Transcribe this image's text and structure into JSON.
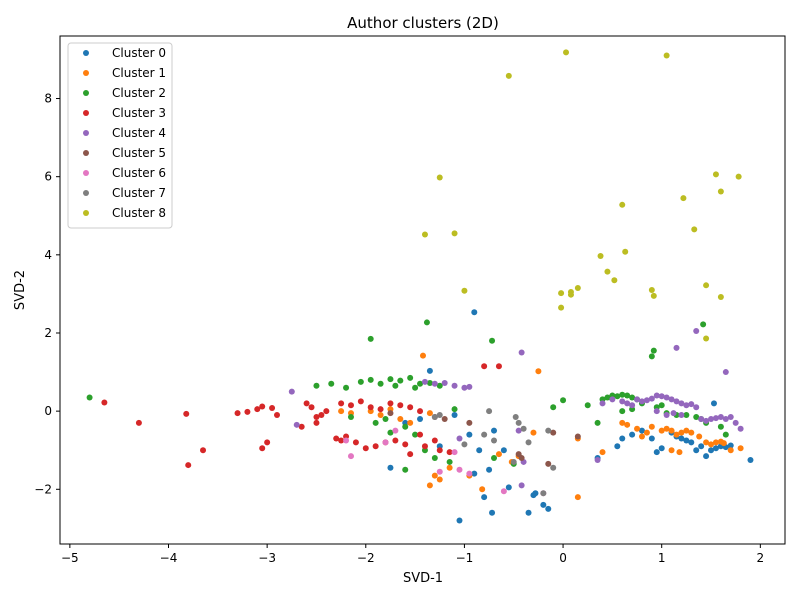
{
  "chart_data": {
    "type": "scatter",
    "title": "Author clusters (2D)",
    "xlabel": "SVD-1",
    "ylabel": "SVD-2",
    "xlim": [
      -5.1,
      2.25
    ],
    "ylim": [
      -3.4,
      9.6
    ],
    "xticks": [
      -5,
      -4,
      -3,
      -2,
      -1,
      0,
      1,
      2
    ],
    "yticks": [
      -2,
      0,
      2,
      4,
      6,
      8
    ],
    "grid": false,
    "legend_position": "top-left",
    "series": [
      {
        "name": "Cluster 0",
        "color": "#1f77b4",
        "points": [
          [
            -0.9,
            2.53
          ],
          [
            -1.35,
            1.03
          ],
          [
            -1.75,
            -1.45
          ],
          [
            -1.25,
            -0.9
          ],
          [
            -1.05,
            -2.8
          ],
          [
            -0.9,
            -1.6
          ],
          [
            -0.8,
            -2.2
          ],
          [
            -0.72,
            -2.6
          ],
          [
            -0.55,
            -1.95
          ],
          [
            -0.3,
            -2.15
          ],
          [
            -0.28,
            -2.1
          ],
          [
            -0.2,
            -2.4
          ],
          [
            -0.15,
            -2.5
          ],
          [
            -0.35,
            -2.6
          ],
          [
            -0.7,
            -0.5
          ],
          [
            -0.75,
            -1.5
          ],
          [
            -0.6,
            -1.0
          ],
          [
            -0.85,
            -1.0
          ],
          [
            -0.95,
            -0.6
          ],
          [
            -1.1,
            -0.1
          ],
          [
            0.35,
            -1.2
          ],
          [
            0.55,
            -0.9
          ],
          [
            0.6,
            -0.7
          ],
          [
            0.7,
            -0.6
          ],
          [
            0.8,
            -0.5
          ],
          [
            0.9,
            -0.7
          ],
          [
            0.95,
            -1.05
          ],
          [
            1.0,
            -0.95
          ],
          [
            1.1,
            -0.55
          ],
          [
            1.15,
            -0.65
          ],
          [
            1.2,
            -0.7
          ],
          [
            1.25,
            -0.75
          ],
          [
            1.3,
            -0.8
          ],
          [
            1.35,
            -1.0
          ],
          [
            1.4,
            -0.9
          ],
          [
            1.45,
            -1.15
          ],
          [
            1.5,
            -1.0
          ],
          [
            1.55,
            -0.95
          ],
          [
            1.6,
            -0.9
          ],
          [
            1.65,
            -0.92
          ],
          [
            1.7,
            -0.88
          ],
          [
            1.53,
            0.2
          ],
          [
            1.9,
            -1.25
          ],
          [
            -1.6,
            -0.3
          ],
          [
            -1.45,
            -0.2
          ]
        ]
      },
      {
        "name": "Cluster 1",
        "color": "#ff7f0e",
        "points": [
          [
            -1.42,
            1.42
          ],
          [
            -0.25,
            1.02
          ],
          [
            -2.25,
            0.0
          ],
          [
            -2.15,
            -0.05
          ],
          [
            -1.95,
            0.0
          ],
          [
            -1.85,
            -0.1
          ],
          [
            -1.75,
            0.05
          ],
          [
            -1.65,
            -0.2
          ],
          [
            -1.55,
            -0.3
          ],
          [
            -1.35,
            -0.05
          ],
          [
            -1.3,
            -1.65
          ],
          [
            -1.25,
            -1.75
          ],
          [
            -1.35,
            -1.9
          ],
          [
            -1.15,
            -1.45
          ],
          [
            -0.95,
            -1.65
          ],
          [
            -0.82,
            -2.0
          ],
          [
            -0.65,
            -1.1
          ],
          [
            -0.52,
            -1.3
          ],
          [
            -0.45,
            -1.15
          ],
          [
            -0.3,
            -0.55
          ],
          [
            0.15,
            -2.2
          ],
          [
            0.15,
            -0.7
          ],
          [
            0.4,
            -1.05
          ],
          [
            0.6,
            -0.3
          ],
          [
            0.65,
            -0.35
          ],
          [
            0.75,
            -0.45
          ],
          [
            0.8,
            -0.65
          ],
          [
            0.85,
            -0.55
          ],
          [
            0.9,
            -0.4
          ],
          [
            1.0,
            -0.5
          ],
          [
            1.05,
            -0.45
          ],
          [
            1.1,
            -0.5
          ],
          [
            1.15,
            -0.6
          ],
          [
            1.2,
            -0.55
          ],
          [
            1.25,
            -0.5
          ],
          [
            1.3,
            -0.55
          ],
          [
            1.38,
            -0.65
          ],
          [
            1.45,
            -0.8
          ],
          [
            1.5,
            -0.85
          ],
          [
            1.55,
            -0.8
          ],
          [
            1.6,
            -0.78
          ],
          [
            1.63,
            -0.82
          ],
          [
            1.7,
            -1.0
          ],
          [
            1.8,
            -0.95
          ],
          [
            1.1,
            -1.0
          ],
          [
            1.18,
            -1.05
          ]
        ]
      },
      {
        "name": "Cluster 2",
        "color": "#2ca02c",
        "points": [
          [
            -4.8,
            0.35
          ],
          [
            -1.38,
            2.27
          ],
          [
            -0.72,
            1.8
          ],
          [
            -1.95,
            1.85
          ],
          [
            -2.5,
            0.65
          ],
          [
            -2.35,
            0.7
          ],
          [
            -2.2,
            0.6
          ],
          [
            -2.05,
            0.75
          ],
          [
            -1.95,
            0.8
          ],
          [
            -1.85,
            0.7
          ],
          [
            -1.75,
            0.82
          ],
          [
            -1.65,
            0.78
          ],
          [
            -1.55,
            0.85
          ],
          [
            -1.45,
            0.7
          ],
          [
            -1.35,
            0.72
          ],
          [
            -1.25,
            0.65
          ],
          [
            -1.5,
            0.6
          ],
          [
            -1.7,
            0.65
          ],
          [
            -1.8,
            -0.2
          ],
          [
            -1.6,
            -0.4
          ],
          [
            -1.5,
            -0.6
          ],
          [
            -1.4,
            -1.0
          ],
          [
            -1.3,
            -1.2
          ],
          [
            -1.1,
            0.05
          ],
          [
            -2.15,
            -0.15
          ],
          [
            -1.9,
            -0.3
          ],
          [
            -1.75,
            -0.55
          ],
          [
            -0.1,
            0.1
          ],
          [
            0.0,
            0.28
          ],
          [
            0.25,
            0.15
          ],
          [
            0.35,
            -0.3
          ],
          [
            0.4,
            0.3
          ],
          [
            0.45,
            0.35
          ],
          [
            0.5,
            0.4
          ],
          [
            0.55,
            0.38
          ],
          [
            0.6,
            0.42
          ],
          [
            0.65,
            0.4
          ],
          [
            0.7,
            0.35
          ],
          [
            0.75,
            0.3
          ],
          [
            0.8,
            0.2
          ],
          [
            0.6,
            0.0
          ],
          [
            0.7,
            0.05
          ],
          [
            0.9,
            1.4
          ],
          [
            0.92,
            1.55
          ],
          [
            1.42,
            2.22
          ],
          [
            1.05,
            -0.05
          ],
          [
            1.15,
            -0.1
          ],
          [
            1.25,
            -0.1
          ],
          [
            1.35,
            -0.15
          ],
          [
            1.4,
            -0.2
          ],
          [
            1.45,
            -0.3
          ],
          [
            1.6,
            -0.4
          ],
          [
            1.65,
            -0.6
          ],
          [
            0.95,
            0.1
          ],
          [
            1.0,
            0.15
          ],
          [
            -1.6,
            -1.5
          ],
          [
            -1.15,
            -1.3
          ],
          [
            -0.7,
            -1.2
          ],
          [
            -0.5,
            -1.35
          ]
        ]
      },
      {
        "name": "Cluster 3",
        "color": "#d62728",
        "points": [
          [
            -4.65,
            0.22
          ],
          [
            -4.3,
            -0.3
          ],
          [
            -3.82,
            -0.07
          ],
          [
            -3.8,
            -1.38
          ],
          [
            -3.65,
            -1.0
          ],
          [
            -3.3,
            -0.05
          ],
          [
            -3.2,
            -0.02
          ],
          [
            -3.1,
            0.05
          ],
          [
            -3.05,
            0.12
          ],
          [
            -2.95,
            0.08
          ],
          [
            -2.9,
            -0.1
          ],
          [
            -3.0,
            -0.8
          ],
          [
            -3.05,
            -0.95
          ],
          [
            -2.6,
            0.2
          ],
          [
            -2.55,
            0.1
          ],
          [
            -2.5,
            -0.15
          ],
          [
            -2.45,
            -0.1
          ],
          [
            -2.4,
            0.0
          ],
          [
            -2.3,
            -0.7
          ],
          [
            -2.25,
            -0.75
          ],
          [
            -2.2,
            -0.65
          ],
          [
            -2.1,
            -0.8
          ],
          [
            -2.0,
            -0.95
          ],
          [
            -1.9,
            -0.9
          ],
          [
            -1.8,
            -0.8
          ],
          [
            -1.7,
            -0.75
          ],
          [
            -1.6,
            -0.85
          ],
          [
            -1.55,
            -1.1
          ],
          [
            -1.45,
            -0.6
          ],
          [
            -1.4,
            -0.9
          ],
          [
            -1.3,
            -0.75
          ],
          [
            -1.25,
            -1.0
          ],
          [
            -1.15,
            -1.05
          ],
          [
            -2.25,
            0.2
          ],
          [
            -2.15,
            0.15
          ],
          [
            -2.05,
            0.25
          ],
          [
            -1.95,
            0.1
          ],
          [
            -1.85,
            0.05
          ],
          [
            -1.75,
            0.2
          ],
          [
            -1.65,
            0.15
          ],
          [
            -1.55,
            0.1
          ],
          [
            -1.45,
            0.0
          ],
          [
            -0.8,
            1.15
          ],
          [
            -0.65,
            1.15
          ],
          [
            -2.5,
            -0.3
          ],
          [
            -2.65,
            -0.4
          ]
        ]
      },
      {
        "name": "Cluster 4",
        "color": "#9467bd",
        "points": [
          [
            -2.75,
            0.5
          ],
          [
            -2.7,
            -0.35
          ],
          [
            -1.4,
            0.75
          ],
          [
            -1.3,
            0.7
          ],
          [
            -1.2,
            0.72
          ],
          [
            -1.1,
            0.65
          ],
          [
            -1.0,
            0.6
          ],
          [
            -0.95,
            0.62
          ],
          [
            -1.05,
            -0.7
          ],
          [
            -0.42,
            1.5
          ],
          [
            -0.45,
            -0.5
          ],
          [
            -0.4,
            -1.3
          ],
          [
            -0.42,
            -1.9
          ],
          [
            0.35,
            -1.25
          ],
          [
            0.4,
            0.2
          ],
          [
            0.5,
            0.3
          ],
          [
            0.6,
            0.25
          ],
          [
            0.65,
            0.2
          ],
          [
            0.7,
            0.15
          ],
          [
            0.75,
            0.3
          ],
          [
            0.8,
            0.25
          ],
          [
            0.85,
            0.28
          ],
          [
            0.9,
            0.32
          ],
          [
            0.95,
            0.4
          ],
          [
            1.0,
            0.38
          ],
          [
            1.05,
            0.35
          ],
          [
            1.1,
            0.3
          ],
          [
            1.15,
            0.25
          ],
          [
            1.2,
            0.2
          ],
          [
            1.25,
            0.15
          ],
          [
            1.3,
            0.18
          ],
          [
            1.35,
            0.1
          ],
          [
            1.4,
            -0.2
          ],
          [
            1.45,
            -0.25
          ],
          [
            1.5,
            -0.2
          ],
          [
            1.55,
            -0.18
          ],
          [
            1.6,
            -0.15
          ],
          [
            1.65,
            -0.2
          ],
          [
            1.7,
            -0.15
          ],
          [
            1.75,
            -0.3
          ],
          [
            1.8,
            -0.45
          ],
          [
            1.65,
            1.0
          ],
          [
            1.15,
            1.62
          ],
          [
            1.35,
            2.05
          ],
          [
            0.95,
            0.0
          ],
          [
            1.05,
            -0.1
          ],
          [
            1.12,
            -0.05
          ],
          [
            1.2,
            -0.1
          ]
        ]
      },
      {
        "name": "Cluster 5",
        "color": "#8c564b",
        "points": [
          [
            -1.75,
            -0.05
          ],
          [
            -1.3,
            -0.15
          ],
          [
            -1.2,
            -0.2
          ],
          [
            -0.95,
            -0.3
          ],
          [
            -0.45,
            -1.1
          ],
          [
            -0.42,
            -1.2
          ],
          [
            -0.15,
            -1.35
          ],
          [
            -0.1,
            -0.55
          ],
          [
            0.15,
            -0.65
          ]
        ]
      },
      {
        "name": "Cluster 6",
        "color": "#e377c2",
        "points": [
          [
            -2.2,
            -0.75
          ],
          [
            -2.15,
            -1.15
          ],
          [
            -1.8,
            -0.8
          ],
          [
            -1.7,
            -0.5
          ],
          [
            -1.25,
            -1.55
          ],
          [
            -1.1,
            -1.05
          ],
          [
            -1.05,
            -1.5
          ],
          [
            -0.95,
            -1.6
          ],
          [
            -0.6,
            -2.05
          ],
          [
            -0.2,
            -2.1
          ]
        ]
      },
      {
        "name": "Cluster 7",
        "color": "#7f7f7f",
        "points": [
          [
            -1.3,
            -0.15
          ],
          [
            -1.25,
            -0.1
          ],
          [
            -1.0,
            -0.85
          ],
          [
            -0.75,
            0.0
          ],
          [
            -0.8,
            -0.6
          ],
          [
            -0.7,
            -0.75
          ],
          [
            -0.5,
            -1.3
          ],
          [
            -0.48,
            -0.15
          ],
          [
            -0.45,
            -0.3
          ],
          [
            -0.4,
            -0.45
          ],
          [
            -0.35,
            -0.8
          ],
          [
            -0.15,
            -0.5
          ],
          [
            -0.1,
            -1.45
          ],
          [
            -0.2,
            -2.1
          ]
        ]
      },
      {
        "name": "Cluster 8",
        "color": "#bcbd22",
        "points": [
          [
            -0.55,
            8.58
          ],
          [
            0.03,
            9.18
          ],
          [
            1.05,
            9.1
          ],
          [
            -1.25,
            5.98
          ],
          [
            -1.4,
            4.52
          ],
          [
            -1.1,
            4.55
          ],
          [
            -1.0,
            3.08
          ],
          [
            -0.02,
            2.65
          ],
          [
            -0.02,
            3.02
          ],
          [
            0.08,
            3.05
          ],
          [
            0.08,
            2.98
          ],
          [
            0.15,
            3.15
          ],
          [
            0.38,
            3.97
          ],
          [
            0.45,
            3.57
          ],
          [
            0.52,
            3.35
          ],
          [
            0.6,
            5.28
          ],
          [
            0.63,
            4.08
          ],
          [
            0.9,
            3.1
          ],
          [
            0.92,
            2.95
          ],
          [
            1.22,
            5.45
          ],
          [
            1.33,
            4.65
          ],
          [
            1.45,
            3.22
          ],
          [
            1.45,
            1.86
          ],
          [
            1.55,
            6.06
          ],
          [
            1.6,
            5.62
          ],
          [
            1.6,
            2.92
          ],
          [
            1.78,
            6.0
          ]
        ]
      }
    ]
  }
}
